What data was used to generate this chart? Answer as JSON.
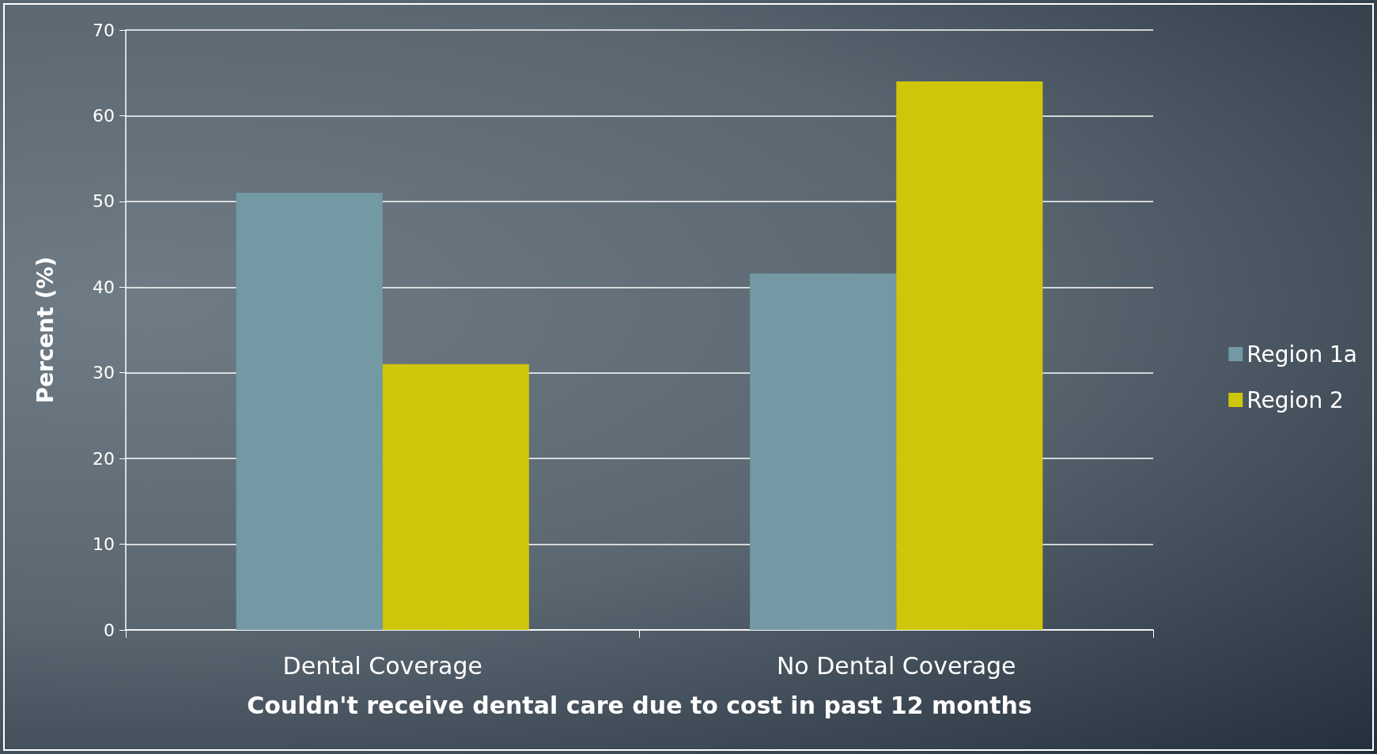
{
  "chart_data": {
    "type": "bar",
    "xlabel": "Couldn't receive dental care due to cost in past 12 months",
    "ylabel": "Percent (%)",
    "categories": [
      "Dental Coverage",
      "No Dental Coverage"
    ],
    "series": [
      {
        "name": "Region 1a",
        "color": "#7399a5",
        "values": [
          51,
          41.6
        ]
      },
      {
        "name": "Region 2",
        "color": "#cfc60b",
        "values": [
          31,
          64
        ]
      }
    ],
    "ylim": [
      0,
      70
    ],
    "yticks": [
      0,
      10,
      20,
      30,
      40,
      50,
      60,
      70
    ],
    "grid": "y",
    "legend": "right"
  }
}
